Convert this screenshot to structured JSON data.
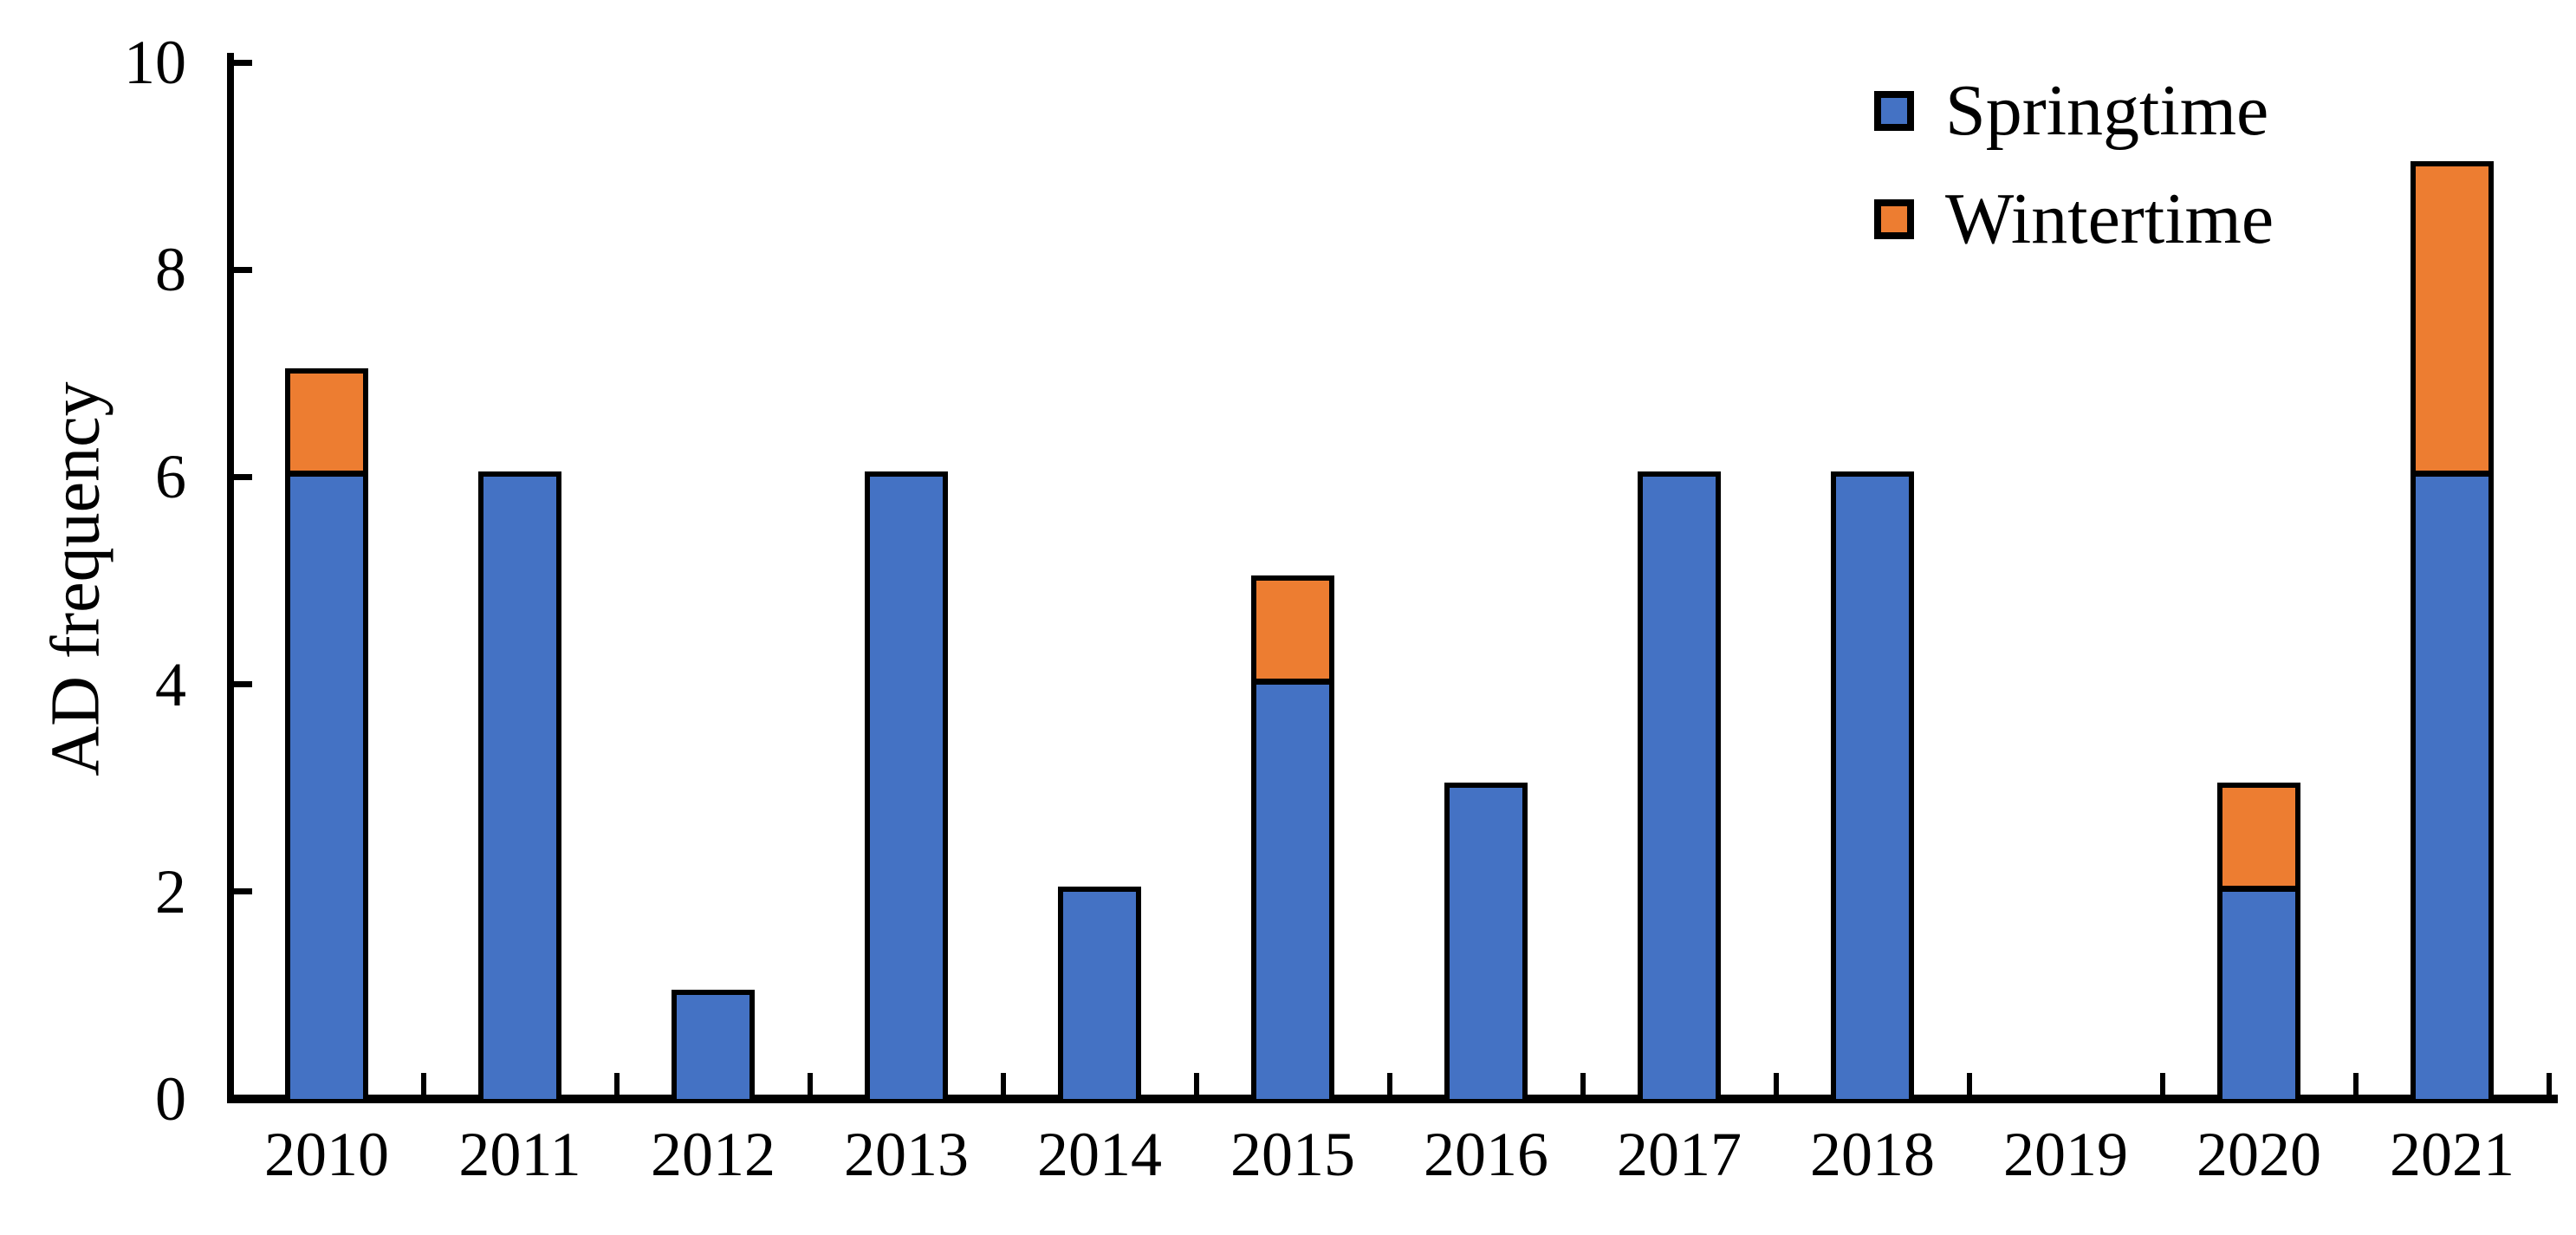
{
  "chart_data": {
    "type": "bar",
    "stacked": true,
    "title": "",
    "xlabel": "",
    "ylabel": "AD frequency",
    "categories": [
      "2010",
      "2011",
      "2012",
      "2013",
      "2014",
      "2015",
      "2016",
      "2017",
      "2018",
      "2019",
      "2020",
      "2021"
    ],
    "series": [
      {
        "name": "Springtime",
        "color": "#4472C4",
        "values": [
          6,
          6,
          1,
          6,
          2,
          4,
          3,
          6,
          6,
          0,
          2,
          6
        ]
      },
      {
        "name": "Wintertime",
        "color": "#ED7D31",
        "values": [
          1,
          0,
          0,
          0,
          0,
          1,
          0,
          0,
          0,
          0,
          1,
          3
        ]
      }
    ],
    "totals": [
      7,
      6,
      1,
      6,
      2,
      5,
      3,
      6,
      6,
      0,
      3,
      9
    ],
    "ylim": [
      0,
      10
    ],
    "ytick_values": [
      0,
      2,
      4,
      6,
      8,
      10
    ],
    "ytick_labels": [
      "0",
      "2",
      "4",
      "6",
      "8",
      "10"
    ],
    "grid": false,
    "legend_position": "top-right",
    "bar_outline_color": "#000000",
    "axis_color": "#000000",
    "background_color": "#FFFFFF"
  }
}
